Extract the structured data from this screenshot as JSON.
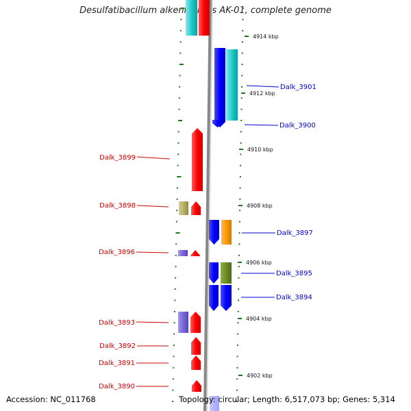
{
  "header": {
    "title": "Desulfatibacillum alkenivorans AK-01, complete genome"
  },
  "footer": {
    "accession": "Accession: NC_011768",
    "summary": "Topology: circular; Length: 6,517,073 bp; Genes: 5,314"
  },
  "ruler": {
    "labels": [
      "4914 kbp",
      "4912 kbp",
      "4910 kbp",
      "4908 kbp",
      "4906 kbp",
      "4904 kbp",
      "4902 kbp"
    ]
  },
  "genes": {
    "labels": [
      "Dalk_3901",
      "Dalk_3900",
      "Dalk_3899",
      "Dalk_3898",
      "Dalk_3897",
      "Dalk_3896",
      "Dalk_3895",
      "Dalk_3894",
      "Dalk_3893",
      "Dalk_3892",
      "Dalk_3891",
      "Dalk_3890"
    ]
  },
  "colors": {
    "forward_label": "#cc0000",
    "reverse_label": "#0000cc",
    "ruler_tick": "#1a7a1a",
    "backbone": "#888888",
    "red": "#ff0000",
    "blue": "#0000ff",
    "cyan": "#22cccc",
    "orange": "#ff9900",
    "olive": "#6b8e23",
    "khaki": "#b8b06a",
    "purple": "#7b68d8"
  }
}
